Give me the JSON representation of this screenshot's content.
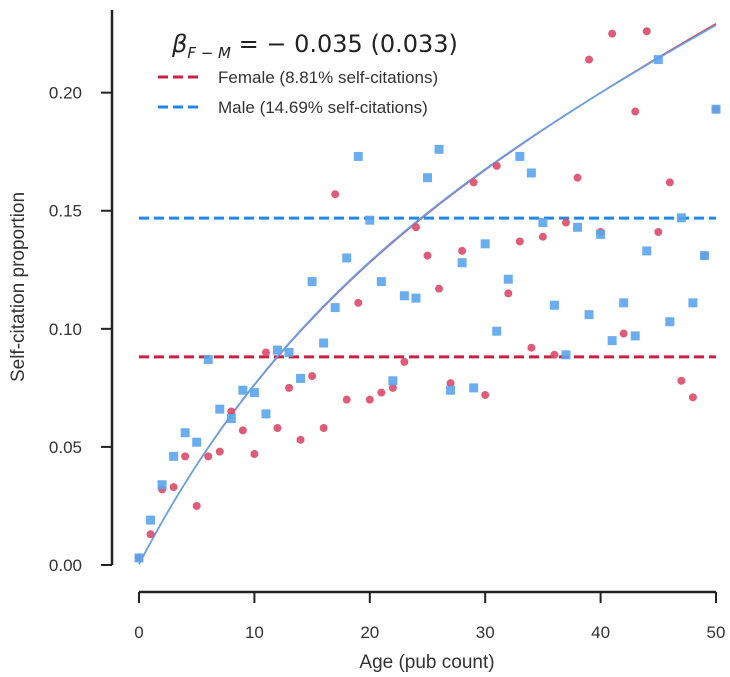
{
  "chart_data": {
    "type": "scatter",
    "xlabel": "Age (pub count)",
    "ylabel": "Self-citation proportion",
    "xlim": [
      0,
      50
    ],
    "ylim": [
      0,
      0.235
    ],
    "xticks": [
      0,
      10,
      20,
      30,
      40,
      50
    ],
    "xtick_labels": [
      "0",
      "10",
      "20",
      "30",
      "40",
      "50"
    ],
    "yticks": [
      0.0,
      0.05,
      0.1,
      0.15,
      0.2
    ],
    "ytick_labels": [
      "0.00",
      "0.05",
      "0.10",
      "0.15",
      "0.20"
    ],
    "grid": false,
    "legend_position": "top-left",
    "annotation": {
      "beta": "β",
      "subscript": "F − M",
      "value": " = − 0.035 (0.033)"
    },
    "series": [
      {
        "name": "Female (8.81% self-citations)",
        "color": "#dc4a6a",
        "marker": "circle",
        "mean": 0.0881,
        "mean_color": "#cc1f45",
        "x": [
          0,
          1,
          2,
          3,
          4,
          5,
          6,
          7,
          8,
          9,
          10,
          11,
          12,
          13,
          14,
          15,
          16,
          17,
          18,
          19,
          20,
          21,
          22,
          23,
          24,
          25,
          26,
          27,
          28,
          29,
          30,
          31,
          32,
          33,
          34,
          35,
          36,
          37,
          38,
          39,
          40,
          41,
          42,
          43,
          44,
          45,
          46,
          47,
          48,
          49,
          50
        ],
        "y": [
          0.003,
          0.013,
          0.032,
          0.033,
          0.046,
          0.025,
          0.046,
          0.048,
          0.065,
          0.057,
          0.047,
          0.09,
          0.058,
          0.075,
          0.053,
          0.08,
          0.058,
          0.157,
          0.07,
          0.111,
          0.07,
          0.073,
          0.075,
          0.086,
          0.143,
          0.131,
          0.117,
          0.077,
          0.133,
          0.162,
          0.072,
          0.169,
          0.115,
          0.137,
          0.092,
          0.139,
          0.089,
          0.145,
          0.164,
          0.214,
          0.141,
          0.225,
          0.098,
          0.192,
          0.226,
          0.141,
          0.162,
          0.078,
          0.071,
          0.131,
          0.193
        ],
        "fit": {
          "a": 0.1055,
          "b": 0.0003,
          "c": 0.00255,
          "d": 0.065
        }
      },
      {
        "name": "Male (14.69% self-citations)",
        "color": "#5aa5ee",
        "marker": "square",
        "mean": 0.1469,
        "mean_color": "#2188e8",
        "x": [
          0,
          1,
          2,
          3,
          4,
          5,
          6,
          7,
          8,
          9,
          10,
          11,
          12,
          13,
          14,
          15,
          16,
          17,
          18,
          19,
          20,
          21,
          22,
          23,
          24,
          25,
          26,
          27,
          28,
          29,
          30,
          31,
          32,
          33,
          34,
          35,
          36,
          37,
          38,
          39,
          40,
          41,
          42,
          43,
          44,
          45,
          46,
          47,
          48,
          49,
          50
        ],
        "y": [
          0.003,
          0.019,
          0.034,
          0.046,
          0.056,
          0.052,
          0.087,
          0.066,
          0.062,
          0.074,
          0.073,
          0.064,
          0.091,
          0.09,
          0.079,
          0.12,
          0.094,
          0.109,
          0.13,
          0.173,
          0.146,
          0.12,
          0.078,
          0.114,
          0.113,
          0.164,
          0.176,
          0.074,
          0.128,
          0.075,
          0.136,
          0.099,
          0.121,
          0.173,
          0.166,
          0.145,
          0.11,
          0.089,
          0.143,
          0.106,
          0.14,
          0.095,
          0.111,
          0.097,
          0.133,
          0.214,
          0.103,
          0.147,
          0.111,
          0.131,
          0.193
        ],
        "fit": {
          "a": 0.1105,
          "b": 0.0003,
          "c": 0.00245,
          "d": 0.063
        }
      }
    ]
  }
}
